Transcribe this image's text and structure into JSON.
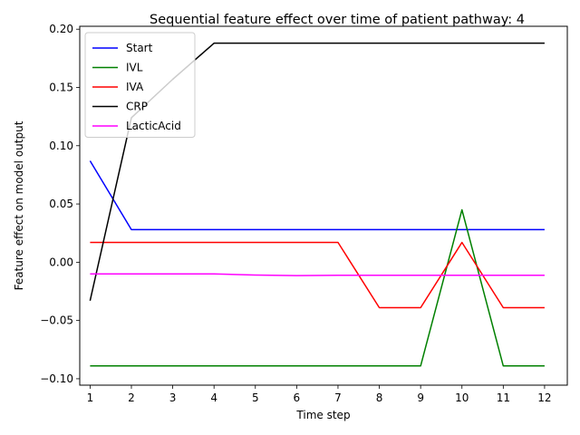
{
  "chart_data": {
    "type": "line",
    "title": "Sequential feature effect over time of patient pathway: 4",
    "xlabel": "Time step",
    "ylabel": "Feature effect on model output",
    "x": [
      1,
      2,
      3,
      4,
      5,
      6,
      7,
      8,
      9,
      10,
      11,
      12
    ],
    "xlim": [
      0.75,
      12.55
    ],
    "ylim": [
      -0.1055,
      0.2025
    ],
    "yticks": [
      -0.1,
      -0.05,
      0.0,
      0.05,
      0.1,
      0.15,
      0.2
    ],
    "ytick_labels": [
      "−0.10",
      "−0.05",
      "0.00",
      "0.05",
      "0.10",
      "0.15",
      "0.20"
    ],
    "xtick_labels": [
      "1",
      "2",
      "3",
      "4",
      "5",
      "6",
      "7",
      "8",
      "9",
      "10",
      "11",
      "12"
    ],
    "grid": false,
    "legend_position": "top-left",
    "series": [
      {
        "name": "Start",
        "color": "#0000ff",
        "values": [
          0.087,
          0.028,
          0.028,
          0.028,
          0.028,
          0.028,
          0.028,
          0.028,
          0.028,
          0.028,
          0.028,
          0.028
        ]
      },
      {
        "name": "IVL",
        "color": "#008000",
        "values": [
          -0.089,
          -0.089,
          -0.089,
          -0.089,
          -0.089,
          -0.089,
          -0.089,
          -0.089,
          -0.089,
          0.045,
          -0.089,
          -0.089
        ]
      },
      {
        "name": "IVA",
        "color": "#ff0000",
        "values": [
          0.017,
          0.017,
          0.017,
          0.017,
          0.017,
          0.017,
          0.017,
          -0.039,
          -0.039,
          0.017,
          -0.039,
          -0.039
        ]
      },
      {
        "name": "CRP",
        "color": "#000000",
        "values": [
          -0.033,
          0.124,
          0.157,
          0.188,
          0.188,
          0.188,
          0.188,
          0.188,
          0.188,
          0.188,
          0.188,
          0.188
        ]
      },
      {
        "name": "LacticAcid",
        "color": "#ff00ff",
        "values": [
          -0.01,
          -0.01,
          -0.01,
          -0.01,
          -0.011,
          -0.0115,
          -0.0112,
          -0.0112,
          -0.0112,
          -0.0112,
          -0.0112,
          -0.0112
        ]
      }
    ]
  }
}
